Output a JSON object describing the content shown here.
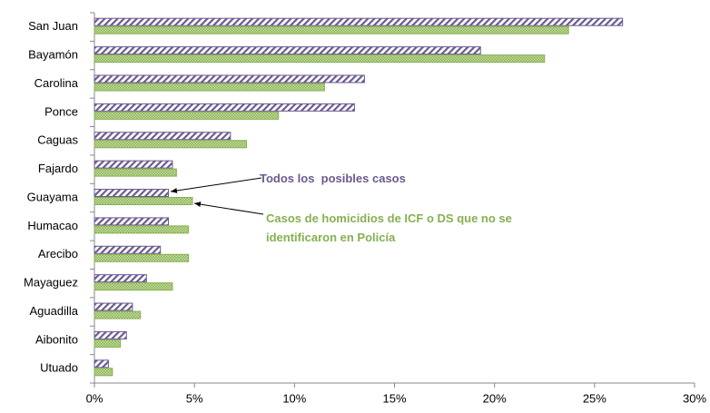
{
  "chart_data": {
    "type": "barh",
    "categories": [
      "San Juan",
      "Bayamón",
      "Carolina",
      "Ponce",
      "Caguas",
      "Fajardo",
      "Guayama",
      "Humacao",
      "Arecibo",
      "Mayaguez",
      "Aguadilla",
      "Aibonito",
      "Utuado"
    ],
    "series": [
      {
        "name": "Todos los  posibles casos",
        "color": "#6b5a8e",
        "values": [
          26.4,
          19.3,
          13.5,
          13.0,
          6.8,
          3.9,
          3.7,
          3.7,
          3.3,
          2.6,
          1.9,
          1.6,
          0.7
        ]
      },
      {
        "name": "Casos de homicidios de ICF o DS que no se identificaron en Policía",
        "color": "#86b050",
        "values": [
          23.7,
          22.5,
          11.5,
          9.2,
          7.6,
          4.1,
          4.9,
          4.7,
          4.7,
          3.9,
          2.3,
          1.3,
          0.9
        ]
      }
    ],
    "xlim": [
      0,
      30
    ],
    "xticks": [
      {
        "value": 0,
        "label": "0%"
      },
      {
        "value": 5,
        "label": "5%"
      },
      {
        "value": 10,
        "label": "10%"
      },
      {
        "value": 15,
        "label": "15%"
      },
      {
        "value": 20,
        "label": "20%"
      },
      {
        "value": 25,
        "label": "25%"
      },
      {
        "value": 30,
        "label": "30%"
      }
    ],
    "grid": false
  }
}
